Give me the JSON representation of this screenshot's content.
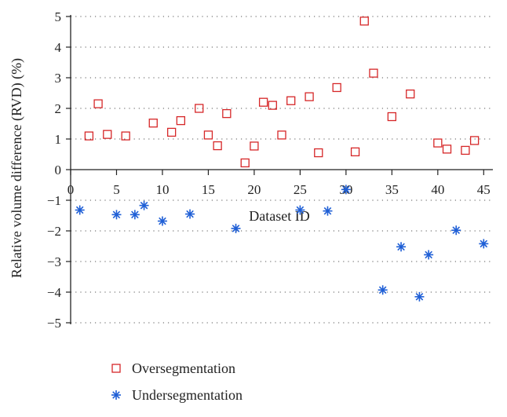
{
  "chart_data": {
    "type": "scatter",
    "title": "",
    "xlabel": "Dataset ID",
    "ylabel": "Relative volume difference (RVD) (%)",
    "xlim": [
      0,
      46
    ],
    "ylim": [
      -5,
      5
    ],
    "x_ticks": [
      0,
      5,
      10,
      15,
      20,
      25,
      30,
      35,
      40,
      45
    ],
    "y_ticks": [
      5,
      4,
      3,
      2,
      1,
      0,
      -1,
      -2,
      -3,
      -4,
      -5
    ],
    "x_tick_labels": [
      "0",
      "5",
      "10",
      "15",
      "20",
      "25",
      "30",
      "35",
      "40",
      "45"
    ],
    "y_tick_labels": [
      "5",
      "4",
      "3",
      "2",
      "1",
      "0",
      "−1",
      "−2",
      "−3",
      "−4",
      "−5"
    ],
    "grid": true,
    "legend_position": "bottom-left",
    "series": [
      {
        "name": "Oversegmentation",
        "marker": "square",
        "color": "#d62728",
        "points": [
          [
            2,
            1.1
          ],
          [
            3,
            2.15
          ],
          [
            4,
            1.15
          ],
          [
            6,
            1.1
          ],
          [
            9,
            1.52
          ],
          [
            11,
            1.22
          ],
          [
            12,
            1.6
          ],
          [
            14,
            2.0
          ],
          [
            15,
            1.13
          ],
          [
            16,
            0.78
          ],
          [
            17,
            1.83
          ],
          [
            19,
            0.22
          ],
          [
            20,
            0.77
          ],
          [
            21,
            2.2
          ],
          [
            22,
            2.1
          ],
          [
            23,
            1.13
          ],
          [
            24,
            2.25
          ],
          [
            26,
            2.38
          ],
          [
            27,
            0.55
          ],
          [
            29,
            2.68
          ],
          [
            31,
            0.58
          ],
          [
            32,
            4.85
          ],
          [
            33,
            3.15
          ],
          [
            35,
            1.73
          ],
          [
            37,
            2.47
          ],
          [
            40,
            0.87
          ],
          [
            41,
            0.67
          ],
          [
            43,
            0.63
          ],
          [
            44,
            0.95
          ]
        ]
      },
      {
        "name": "Undersegmentation",
        "marker": "asterisk",
        "color": "#1f5fd6",
        "points": [
          [
            1,
            -1.32
          ],
          [
            5,
            -1.47
          ],
          [
            7,
            -1.47
          ],
          [
            8,
            -1.17
          ],
          [
            10,
            -1.68
          ],
          [
            13,
            -1.45
          ],
          [
            18,
            -1.92
          ],
          [
            25,
            -1.32
          ],
          [
            28,
            -1.35
          ],
          [
            30,
            -0.65
          ],
          [
            34,
            -3.93
          ],
          [
            36,
            -2.52
          ],
          [
            38,
            -4.15
          ],
          [
            39,
            -2.78
          ],
          [
            42,
            -1.98
          ],
          [
            45,
            -2.42
          ]
        ]
      }
    ]
  }
}
